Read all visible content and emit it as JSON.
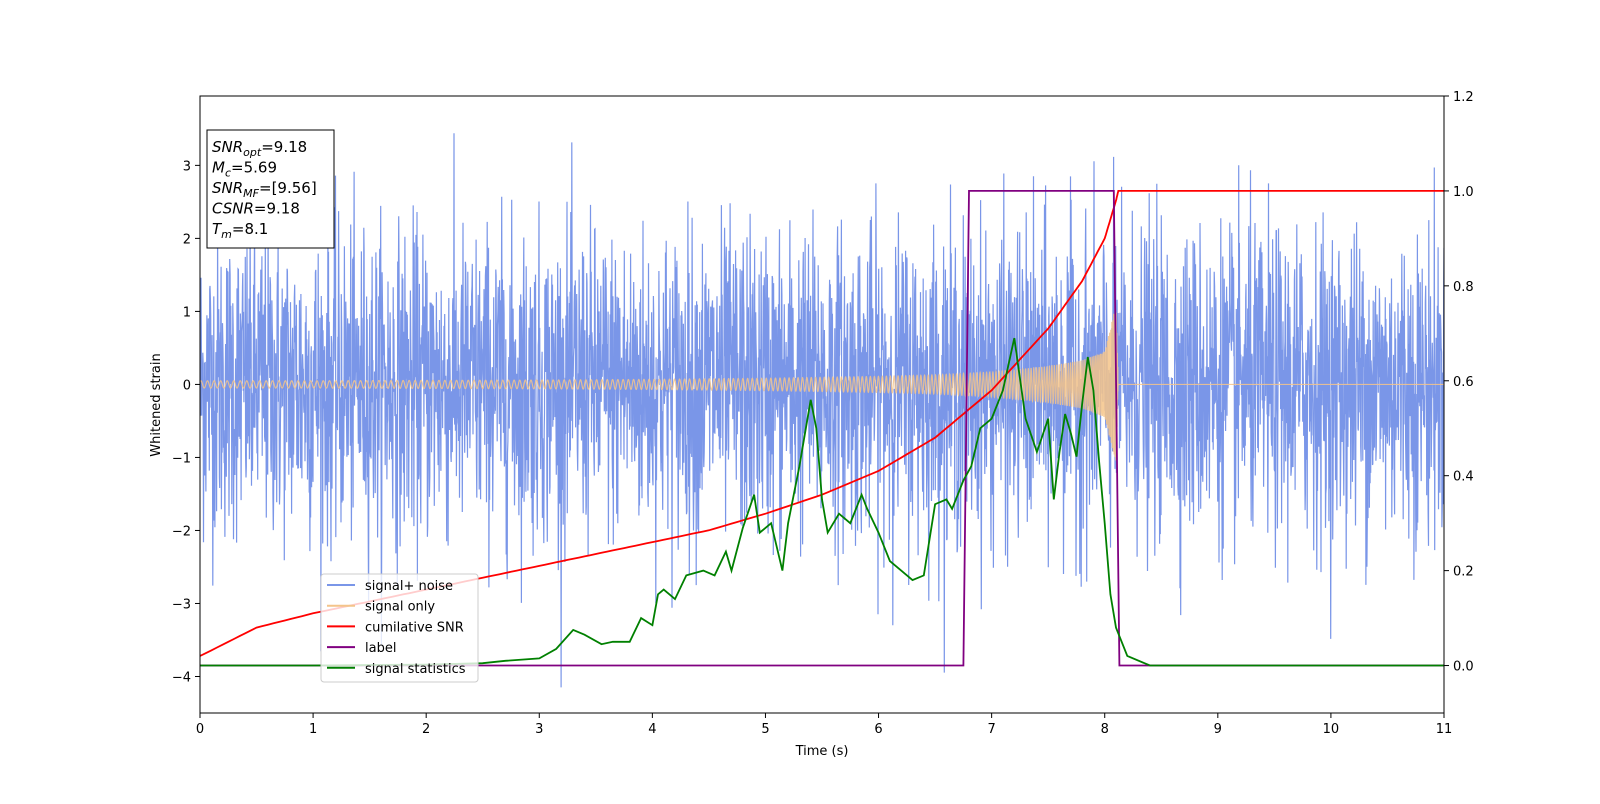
{
  "chart_data": {
    "type": "line",
    "xlabel": "Time (s)",
    "ylabel": "Whitened strain",
    "xlim": [
      0,
      11
    ],
    "ylim_left": [
      -4.5,
      3.95
    ],
    "ylim_right": [
      -0.1,
      1.2
    ],
    "x_ticks": [
      0,
      1,
      2,
      3,
      4,
      5,
      6,
      7,
      8,
      9,
      10,
      11
    ],
    "y_ticks_left": [
      -4,
      -3,
      -2,
      -1,
      0,
      1,
      2,
      3
    ],
    "y_ticks_right": [
      "0.0",
      "0.2",
      "0.4",
      "0.6",
      "0.8",
      "1.0",
      "1.2"
    ],
    "grid": false,
    "legend_position": "lower-left",
    "textbox": [
      {
        "base": "SNR",
        "sub": "opt",
        "value": "=9.18"
      },
      {
        "base": "M",
        "sub": "c",
        "value": "=5.69"
      },
      {
        "base": "SNR",
        "sub": "MF",
        "value": "=[9.56]"
      },
      {
        "base": "CSNR",
        "sub": "",
        "value": "=9.18"
      },
      {
        "base": "T",
        "sub": "m",
        "value": "=8.1"
      }
    ],
    "series": [
      {
        "name": "signal+ noise",
        "color": "#7a96e8",
        "axis": "left",
        "description_values": {
          "mean": 0.0,
          "typical_range": [
            -2.5,
            2.5
          ],
          "max": 3.55,
          "min": -4.15
        }
      },
      {
        "name": "signal only",
        "color": "#f4c48a",
        "axis": "left",
        "envelope": {
          "x": [
            0,
            1,
            2,
            3,
            4,
            5,
            6,
            6.5,
            7,
            7.5,
            7.8,
            8.0,
            8.1,
            8.12,
            11
          ],
          "amplitude": [
            0.05,
            0.05,
            0.055,
            0.06,
            0.07,
            0.085,
            0.11,
            0.13,
            0.17,
            0.25,
            0.33,
            0.45,
            1.1,
            0.0,
            0.0
          ]
        }
      },
      {
        "name": "cumilative SNR",
        "color": "#ff0000",
        "axis": "right",
        "x": [
          0,
          0.5,
          1,
          1.5,
          2,
          2.5,
          3,
          3.5,
          4,
          4.5,
          5,
          5.5,
          6,
          6.5,
          7,
          7.5,
          7.8,
          8.0,
          8.1,
          8.12,
          11
        ],
        "y": [
          0.02,
          0.08,
          0.11,
          0.135,
          0.16,
          0.185,
          0.21,
          0.235,
          0.26,
          0.285,
          0.32,
          0.36,
          0.41,
          0.48,
          0.58,
          0.71,
          0.81,
          0.9,
          0.98,
          1.0,
          1.0
        ]
      },
      {
        "name": "label",
        "color": "#800080",
        "axis": "right",
        "x": [
          0,
          6.75,
          6.8,
          8.08,
          8.13,
          11
        ],
        "y": [
          0,
          0,
          1,
          1,
          0,
          0
        ]
      },
      {
        "name": "signal statistics",
        "color": "#008000",
        "axis": "right",
        "x": [
          0,
          1,
          2,
          2.5,
          2.7,
          3.0,
          3.15,
          3.3,
          3.4,
          3.55,
          3.65,
          3.8,
          3.9,
          4.0,
          4.05,
          4.1,
          4.2,
          4.3,
          4.45,
          4.55,
          4.65,
          4.7,
          4.8,
          4.9,
          4.95,
          5.05,
          5.15,
          5.2,
          5.3,
          5.4,
          5.45,
          5.5,
          5.55,
          5.65,
          5.75,
          5.85,
          5.9,
          6.0,
          6.1,
          6.2,
          6.3,
          6.4,
          6.5,
          6.6,
          6.65,
          6.75,
          6.82,
          6.9,
          7.0,
          7.1,
          7.2,
          7.3,
          7.4,
          7.5,
          7.55,
          7.6,
          7.65,
          7.7,
          7.75,
          7.8,
          7.85,
          7.9,
          7.95,
          8.0,
          8.05,
          8.1,
          8.2,
          8.4,
          9,
          10,
          11
        ],
        "y": [
          0.0,
          0.0,
          0.002,
          0.005,
          0.01,
          0.015,
          0.035,
          0.075,
          0.065,
          0.045,
          0.05,
          0.05,
          0.1,
          0.085,
          0.15,
          0.16,
          0.14,
          0.19,
          0.2,
          0.19,
          0.24,
          0.2,
          0.29,
          0.36,
          0.28,
          0.3,
          0.2,
          0.3,
          0.42,
          0.56,
          0.5,
          0.35,
          0.28,
          0.32,
          0.3,
          0.36,
          0.33,
          0.28,
          0.22,
          0.2,
          0.18,
          0.19,
          0.34,
          0.35,
          0.33,
          0.39,
          0.42,
          0.5,
          0.52,
          0.58,
          0.69,
          0.52,
          0.45,
          0.52,
          0.35,
          0.45,
          0.53,
          0.49,
          0.44,
          0.55,
          0.65,
          0.58,
          0.43,
          0.3,
          0.15,
          0.08,
          0.02,
          0.0,
          0.0,
          0.0,
          0.0
        ]
      }
    ]
  }
}
